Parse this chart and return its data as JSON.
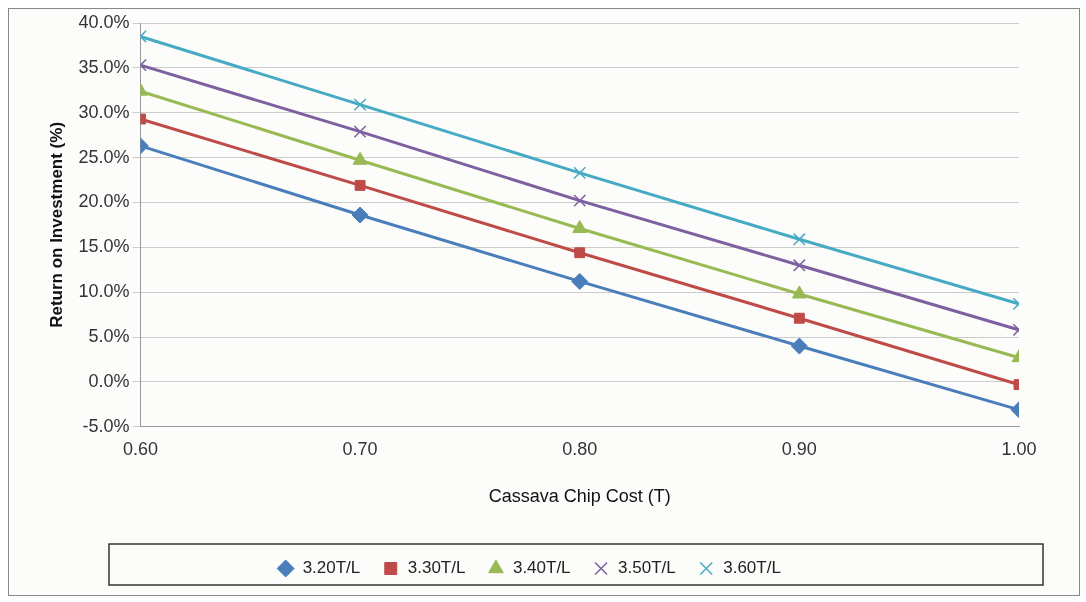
{
  "chart_data": {
    "type": "line",
    "xlabel": "Cassava Chip Cost (T)",
    "ylabel": "Return on Investment (%)",
    "x": [
      0.6,
      0.7,
      0.8,
      0.9,
      1.0
    ],
    "xlim": [
      0.6,
      1.0
    ],
    "xticks": [
      {
        "value": 0.6,
        "label": "0.60"
      },
      {
        "value": 0.7,
        "label": "0.70"
      },
      {
        "value": 0.8,
        "label": "0.80"
      },
      {
        "value": 0.9,
        "label": "0.90"
      },
      {
        "value": 1.0,
        "label": "1.00"
      }
    ],
    "ylim": [
      -5,
      40
    ],
    "yticks": [
      {
        "value": -5,
        "label": "-5.0%"
      },
      {
        "value": 0,
        "label": "0.0%"
      },
      {
        "value": 5,
        "label": "5.0%"
      },
      {
        "value": 10,
        "label": "10.0%"
      },
      {
        "value": 15,
        "label": "15.0%"
      },
      {
        "value": 20,
        "label": "20.0%"
      },
      {
        "value": 25,
        "label": "25.0%"
      },
      {
        "value": 30,
        "label": "30.0%"
      },
      {
        "value": 35,
        "label": "35.0%"
      },
      {
        "value": 40,
        "label": "40.0%"
      }
    ],
    "grid": "y",
    "legend": "bottom",
    "series": [
      {
        "name": "3.20T/L",
        "color": "#4a7ebb",
        "marker": "diamond",
        "values": [
          26.3,
          18.6,
          11.2,
          4.0,
          -3.1
        ]
      },
      {
        "name": "3.30T/L",
        "color": "#be4b48",
        "marker": "square",
        "values": [
          29.3,
          21.9,
          14.4,
          7.1,
          -0.3
        ]
      },
      {
        "name": "3.40T/L",
        "color": "#98b954",
        "marker": "triangle",
        "values": [
          32.4,
          24.7,
          17.1,
          9.8,
          2.7
        ]
      },
      {
        "name": "3.50T/L",
        "color": "#7d60a0",
        "marker": "cross",
        "values": [
          35.3,
          27.9,
          20.2,
          13.0,
          5.8
        ]
      },
      {
        "name": "3.60T/L",
        "color": "#46aac5",
        "marker": "cross",
        "values": [
          38.5,
          30.9,
          23.3,
          15.9,
          8.7
        ]
      }
    ]
  }
}
